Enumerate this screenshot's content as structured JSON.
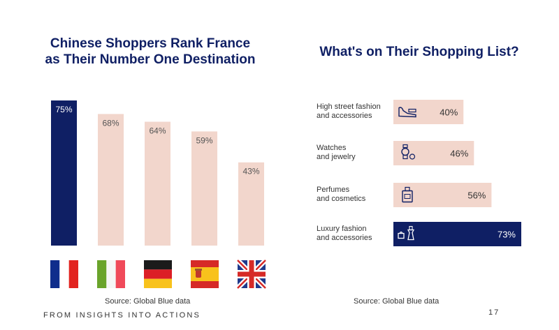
{
  "left_panel": {
    "title_line1": "Chinese Shoppers Rank France",
    "title_line2": "as Their Number One Destination",
    "source": "Source: Global Blue data"
  },
  "right_panel": {
    "title": "What's on Their Shopping List?",
    "source": "Source: Global Blue data"
  },
  "footer": {
    "tagline": "FROM INSIGHTS INTO ACTIONS",
    "page_number": "17"
  },
  "colors": {
    "navy": "#0f1f64",
    "peach": "#f2d6cc"
  },
  "chart_data": [
    {
      "type": "bar",
      "orientation": "vertical",
      "categories": [
        "France",
        "Italy",
        "Germany",
        "Spain",
        "United Kingdom"
      ],
      "values": [
        75,
        68,
        64,
        59,
        43
      ],
      "data_labels": [
        "75%",
        "68%",
        "64%",
        "59%",
        "43%"
      ],
      "highlight_color": "#0f1f64",
      "bar_color": "#f2d6cc",
      "category_icons": [
        "france-flag-icon",
        "italy-flag-icon",
        "germany-flag-icon",
        "spain-flag-icon",
        "uk-flag-icon"
      ]
    },
    {
      "type": "bar",
      "orientation": "horizontal",
      "categories": [
        [
          "High street fashion",
          "and accessories"
        ],
        [
          "Watches",
          "and jewelry"
        ],
        [
          "Perfumes",
          "and cosmetics"
        ],
        [
          "Luxury fashion",
          "and accessories"
        ]
      ],
      "values": [
        40,
        46,
        56,
        73
      ],
      "data_labels": [
        "40%",
        "46%",
        "56%",
        "73%"
      ],
      "highlight_color": "#0f1f64",
      "bar_color": "#f2d6cc",
      "category_icons": [
        "shoe-icon",
        "watch-icon",
        "perfume-icon",
        "handbag-icon"
      ]
    }
  ]
}
